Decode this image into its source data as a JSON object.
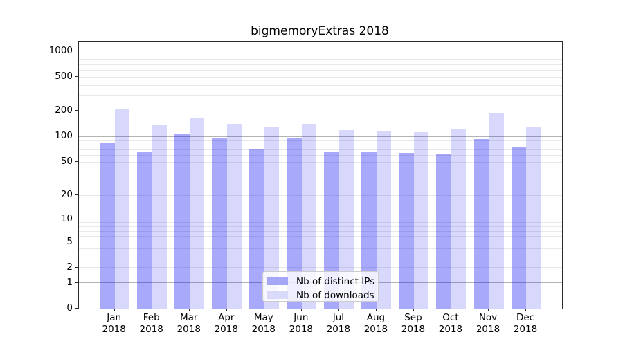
{
  "title": "bigmemoryExtras 2018",
  "chart_data": {
    "type": "bar",
    "title": "bigmemoryExtras 2018",
    "xlabel": "",
    "ylabel": "",
    "categories": [
      "Jan 2018",
      "Feb 2018",
      "Mar 2018",
      "Apr 2018",
      "May 2018",
      "Jun 2018",
      "Jul 2018",
      "Aug 2018",
      "Sep 2018",
      "Oct 2018",
      "Nov 2018",
      "Dec 2018"
    ],
    "months": [
      "Jan",
      "Feb",
      "Mar",
      "Apr",
      "May",
      "Jun",
      "Jul",
      "Aug",
      "Sep",
      "Oct",
      "Nov",
      "Dec"
    ],
    "year": "2018",
    "series": [
      {
        "name": "Nb of distinct IPs",
        "key": "ips",
        "color": "rgba(10,10,245,0.35)",
        "swatch_hex": "#a6a6f7",
        "values": [
          84,
          67,
          108,
          97,
          70,
          96,
          67,
          67,
          64,
          63,
          93,
          75
        ]
      },
      {
        "name": "Nb of downloads",
        "key": "downloads",
        "color": "rgba(10,10,245,0.16)",
        "swatch_hex": "#d9d9fa",
        "values": [
          212,
          136,
          165,
          141,
          128,
          142,
          119,
          115,
          113,
          125,
          186,
          129
        ]
      }
    ],
    "yscale": "log10(value+1), 0 at baseline",
    "ylim": [
      0,
      1295
    ],
    "y_ticks": [
      0,
      1,
      2,
      5,
      10,
      20,
      50,
      100,
      200,
      500,
      1000
    ],
    "y_major_gridlines": [
      1,
      10,
      100,
      1000
    ],
    "y_minor_gridlines": [
      2,
      3,
      4,
      5,
      6,
      7,
      8,
      9,
      20,
      30,
      40,
      50,
      60,
      70,
      80,
      90,
      200,
      300,
      400,
      500,
      600,
      700,
      800,
      900
    ],
    "grid": "horizontal, major gray + minor light-gray",
    "legend_position": "lower center inside plot",
    "colors": {
      "spine": "#2b2b2b",
      "grid_major": "#b3b3b3",
      "grid_minor": "#e9e9e9",
      "legend_border": "#cccccc",
      "text": "#000000"
    }
  }
}
